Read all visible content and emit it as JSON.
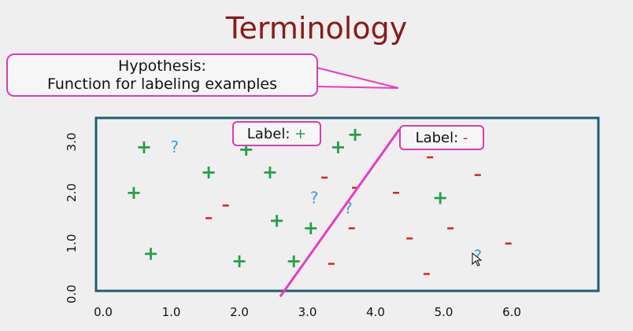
{
  "title": "Terminology",
  "hypothesis_callout": {
    "line1": "Hypothesis:",
    "line2": "Function for labeling examples"
  },
  "label_positive": {
    "text": "Label:",
    "sign": "+"
  },
  "label_negative": {
    "text": "Label:",
    "sign": "-"
  },
  "colors": {
    "title": "#8b1a1a",
    "positive": "#22a04a",
    "negative": "#e02020",
    "unknown": "#3aa0e0",
    "hypothesis_line": "#e83cc0",
    "frame": "#1f5f6e"
  },
  "chart_data": {
    "type": "scatter",
    "xlim": [
      0.0,
      7.4
    ],
    "ylim": [
      -0.05,
      3.25
    ],
    "x_ticks": [
      "0.0",
      "1.0",
      "2.0",
      "3.0",
      "4.0",
      "5.0",
      "6.0"
    ],
    "y_ticks": [
      "0.0",
      "1.0",
      "2.0",
      "3.0"
    ],
    "hypothesis_line": [
      [
        2.6,
        -0.05
      ],
      [
        4.35,
        3.25
      ]
    ],
    "positive": [
      [
        0.6,
        2.9
      ],
      [
        0.45,
        2.0
      ],
      [
        0.7,
        0.8
      ],
      [
        1.55,
        2.4
      ],
      [
        2.1,
        2.85
      ],
      [
        2.45,
        2.4
      ],
      [
        2.0,
        0.65
      ],
      [
        2.8,
        0.65
      ],
      [
        2.55,
        1.45
      ],
      [
        3.05,
        1.3
      ],
      [
        3.45,
        2.9
      ],
      [
        3.7,
        3.15
      ],
      [
        4.95,
        1.9
      ]
    ],
    "negative": [
      [
        3.25,
        2.3
      ],
      [
        3.7,
        2.1
      ],
      [
        4.3,
        2.0
      ],
      [
        4.8,
        2.7
      ],
      [
        5.5,
        2.35
      ],
      [
        1.8,
        1.75
      ],
      [
        1.55,
        1.5
      ],
      [
        3.65,
        1.3
      ],
      [
        4.5,
        1.1
      ],
      [
        5.1,
        1.3
      ],
      [
        5.95,
        1.0
      ],
      [
        3.35,
        0.6
      ],
      [
        4.75,
        0.4
      ]
    ],
    "unknown": [
      [
        1.05,
        2.9
      ],
      [
        3.1,
        1.9
      ],
      [
        3.6,
        1.7
      ],
      [
        5.5,
        0.75
      ]
    ]
  }
}
